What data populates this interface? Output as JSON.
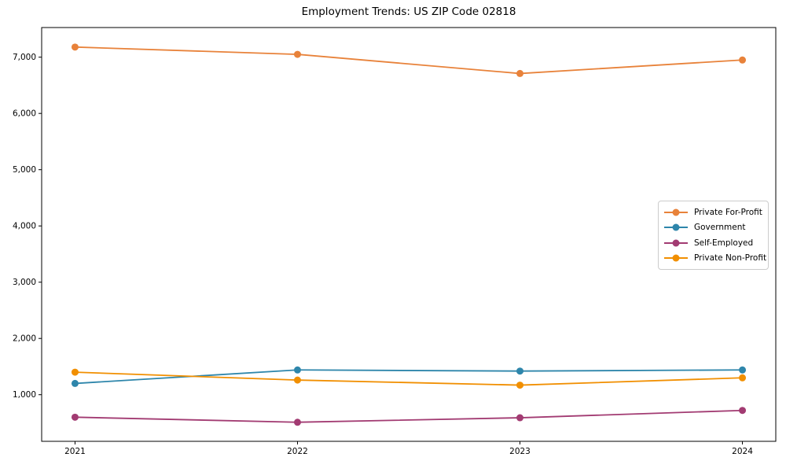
{
  "title": "Employment Trends: US ZIP Code 02818",
  "chart_data": {
    "type": "line",
    "title": "Employment Trends: US ZIP Code 02818",
    "xlabel": "",
    "ylabel": "",
    "x": [
      2021,
      2022,
      2023,
      2024
    ],
    "x_tick_labels": [
      "2021",
      "2022",
      "2023",
      "2024"
    ],
    "series": [
      {
        "name": "Private For-Profit",
        "color": "#E8823A",
        "values": [
          7180,
          7050,
          6710,
          6950
        ]
      },
      {
        "name": "Government",
        "color": "#2E86AB",
        "values": [
          1200,
          1440,
          1420,
          1440
        ]
      },
      {
        "name": "Self-Employed",
        "color": "#A23B72",
        "values": [
          600,
          510,
          590,
          720
        ]
      },
      {
        "name": "Private Non-Profit",
        "color": "#F18F01",
        "values": [
          1400,
          1260,
          1170,
          1300
        ]
      }
    ],
    "yticks": [
      1000,
      2000,
      3000,
      4000,
      5000,
      6000,
      7000
    ],
    "ytick_labels": [
      "1,000",
      "2,000",
      "3,000",
      "4,000",
      "5,000",
      "6,000",
      "7,000"
    ],
    "xlim": [
      2020.85,
      2024.15
    ],
    "ylim": [
      171,
      7527
    ],
    "grid": false,
    "legend_position": "center right",
    "marker": "circle",
    "background_color": "#ffffff",
    "spine_color": "#000000"
  }
}
